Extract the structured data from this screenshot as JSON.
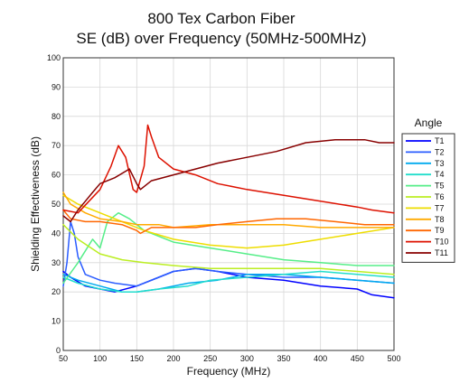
{
  "chart_data": {
    "type": "line",
    "title": "800 Tex Carbon Fiber",
    "subtitle": "SE (dB) over Frequency (50MHz-500MHz)",
    "xlabel": "Frequency (MHz)",
    "ylabel": "Shielding Effectiveness (dB)",
    "xlim": [
      50,
      500
    ],
    "ylim": [
      0,
      100
    ],
    "xticks": [
      50,
      100,
      150,
      200,
      250,
      300,
      350,
      400,
      450,
      500
    ],
    "yticks": [
      0,
      10,
      20,
      30,
      40,
      50,
      60,
      70,
      80,
      90,
      100
    ],
    "grid": true,
    "legend": {
      "title": "Angle",
      "position": "right"
    },
    "series": [
      {
        "name": "T1",
        "color": "#0000ff",
        "x": [
          50,
          60,
          80,
          100,
          120,
          150,
          180,
          200,
          230,
          260,
          300,
          350,
          400,
          450,
          470,
          500
        ],
        "values": [
          27,
          25,
          22,
          21,
          20,
          22,
          25,
          27,
          28,
          27,
          25,
          24,
          22,
          21,
          19,
          18
        ]
      },
      {
        "name": "T2",
        "color": "#2a5cff",
        "x": [
          50,
          55,
          60,
          65,
          70,
          80,
          100,
          120,
          150,
          180,
          200,
          230,
          260,
          300,
          350,
          400,
          450,
          500
        ],
        "values": [
          22,
          30,
          44,
          40,
          32,
          26,
          24,
          23,
          22,
          25,
          27,
          28,
          27,
          26,
          25,
          25,
          24,
          23
        ]
      },
      {
        "name": "T3",
        "color": "#00aaee",
        "x": [
          50,
          70,
          100,
          130,
          150,
          180,
          220,
          260,
          300,
          350,
          400,
          450,
          500
        ],
        "values": [
          26,
          24,
          22,
          20,
          20,
          21,
          23,
          24,
          26,
          26,
          25,
          24,
          23
        ]
      },
      {
        "name": "T4",
        "color": "#22ddcc",
        "x": [
          50,
          70,
          100,
          130,
          150,
          180,
          220,
          250,
          300,
          350,
          400,
          450,
          500
        ],
        "values": [
          25,
          23,
          21,
          20,
          20,
          21,
          22,
          24,
          25,
          26,
          27,
          26,
          25
        ]
      },
      {
        "name": "T5",
        "color": "#55ee88",
        "x": [
          50,
          70,
          90,
          100,
          110,
          125,
          140,
          160,
          200,
          250,
          300,
          350,
          400,
          450,
          500
        ],
        "values": [
          23,
          30,
          38,
          35,
          44,
          47,
          45,
          41,
          37,
          35,
          33,
          31,
          30,
          29,
          29
        ]
      },
      {
        "name": "T6",
        "color": "#bbee22",
        "x": [
          50,
          70,
          100,
          130,
          160,
          200,
          250,
          300,
          350,
          400,
          450,
          500
        ],
        "values": [
          43,
          38,
          33,
          31,
          30,
          29,
          28,
          28,
          28,
          28,
          27,
          26
        ]
      },
      {
        "name": "T7",
        "color": "#eedd00",
        "x": [
          50,
          70,
          100,
          130,
          160,
          200,
          250,
          300,
          350,
          400,
          450,
          500
        ],
        "values": [
          53,
          50,
          47,
          44,
          41,
          38,
          36,
          35,
          36,
          38,
          40,
          42
        ]
      },
      {
        "name": "T8",
        "color": "#ffaa00",
        "x": [
          50,
          60,
          80,
          100,
          130,
          150,
          180,
          200,
          250,
          300,
          350,
          400,
          450,
          500
        ],
        "values": [
          54,
          50,
          47,
          45,
          44,
          43,
          43,
          42,
          43,
          43,
          43,
          42,
          42,
          42
        ]
      },
      {
        "name": "T9",
        "color": "#ff6600",
        "x": [
          50,
          60,
          80,
          100,
          130,
          150,
          155,
          170,
          200,
          230,
          260,
          300,
          340,
          380,
          420,
          460,
          500
        ],
        "values": [
          48,
          45,
          44,
          44,
          43,
          41,
          40,
          42,
          42,
          42,
          43,
          44,
          45,
          45,
          44,
          43,
          43
        ]
      },
      {
        "name": "T10",
        "color": "#dd1100",
        "x": [
          50,
          70,
          100,
          115,
          125,
          135,
          145,
          150,
          160,
          165,
          170,
          180,
          200,
          230,
          260,
          300,
          350,
          400,
          450,
          470,
          500
        ],
        "values": [
          48,
          47,
          55,
          63,
          70,
          66,
          55,
          54,
          63,
          77,
          73,
          66,
          62,
          60,
          57,
          55,
          53,
          51,
          49,
          48,
          47
        ]
      },
      {
        "name": "T11",
        "color": "#880000",
        "x": [
          50,
          60,
          70,
          80,
          90,
          100,
          120,
          140,
          150,
          155,
          170,
          200,
          230,
          260,
          300,
          340,
          380,
          420,
          460,
          480,
          500
        ],
        "values": [
          46,
          44,
          48,
          51,
          54,
          57,
          59,
          62,
          57,
          55,
          58,
          60,
          62,
          64,
          66,
          68,
          71,
          72,
          72,
          71,
          71
        ]
      }
    ]
  }
}
